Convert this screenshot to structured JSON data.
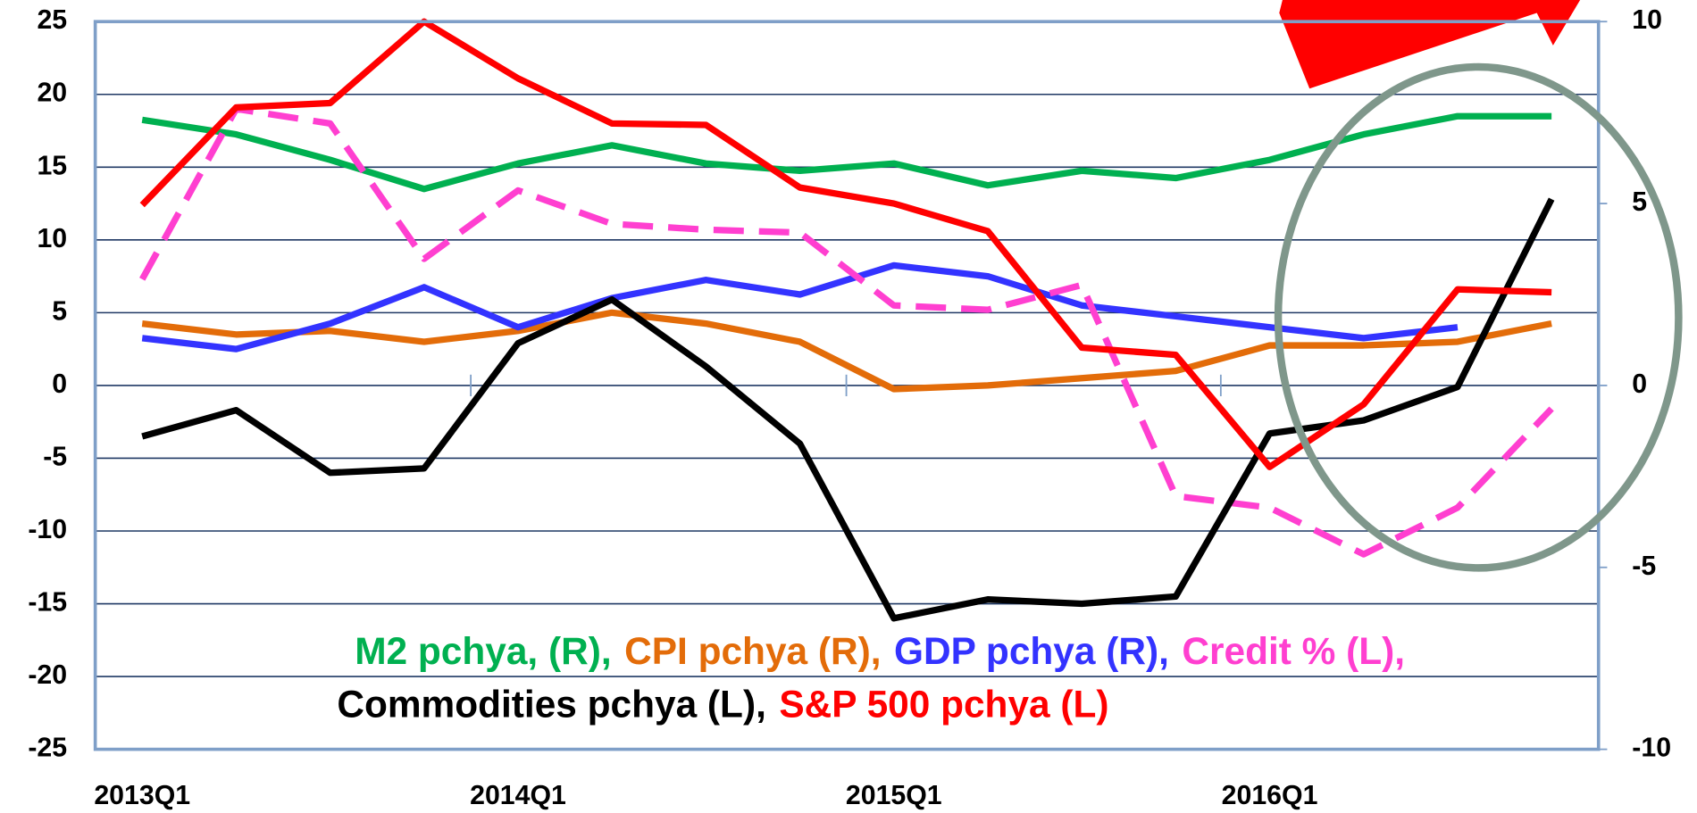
{
  "chart_data": {
    "type": "line",
    "categories": [
      "2013Q1",
      null,
      null,
      null,
      "2014Q1",
      null,
      null,
      null,
      "2015Q1",
      null,
      null,
      null,
      "2016Q1",
      null,
      null,
      null
    ],
    "ylim": [
      -25,
      25
    ],
    "yticks": [
      -25,
      -20,
      -15,
      -10,
      -5,
      0,
      5,
      10,
      15,
      20,
      25
    ],
    "y2lim": [
      -10,
      10
    ],
    "y2ticks": [
      -10,
      -5,
      0,
      5,
      10
    ],
    "grid": true,
    "series": [
      {
        "name": "M2 pchya, (R),",
        "color": "#00b050",
        "axis": "y2",
        "values": [
          7.3,
          6.9,
          6.2,
          5.4,
          6.1,
          6.6,
          6.1,
          5.9,
          6.1,
          5.5,
          5.9,
          5.7,
          6.2,
          6.9,
          7.4,
          7.4
        ]
      },
      {
        "name": "CPI pchya (R),",
        "color": "#e36c09",
        "axis": "y2",
        "values": [
          1.7,
          1.4,
          1.5,
          1.2,
          1.5,
          2.0,
          1.7,
          1.2,
          -0.1,
          0.0,
          0.2,
          0.4,
          1.1,
          1.1,
          1.2,
          1.7
        ]
      },
      {
        "name": "GDP pchya (R),",
        "color": "#3333ff",
        "axis": "y2",
        "values": [
          1.3,
          1.0,
          1.7,
          2.7,
          1.6,
          2.4,
          2.9,
          2.5,
          3.3,
          3.0,
          2.2,
          1.9,
          1.6,
          1.3,
          1.6,
          null
        ]
      },
      {
        "name": "Credit % (L),",
        "color": "#ff3fd0",
        "dashed": true,
        "values": [
          7.3,
          19,
          18,
          8.7,
          13.4,
          11.1,
          10.7,
          10.5,
          5.5,
          5.2,
          6.9,
          -7.6,
          -8.4,
          -11.6,
          -8.4,
          -1.6
        ]
      },
      {
        "name": "Commodities pchya (L),",
        "color": "#000000",
        "values": [
          -3.5,
          -1.7,
          -6,
          -5.7,
          2.9,
          5.9,
          1.3,
          -4,
          -16,
          -14.7,
          -15,
          -14.5,
          -3.3,
          -2.4,
          -0.1,
          12.8
        ]
      },
      {
        "name": "S&P 500 pchya (L)",
        "color": "#ff0000",
        "values": [
          12.4,
          19.1,
          19.4,
          25,
          21.1,
          18,
          17.9,
          13.6,
          12.5,
          10.6,
          2.6,
          2.1,
          -5.6,
          -1.3,
          6.6,
          6.4
        ]
      }
    ]
  }
}
